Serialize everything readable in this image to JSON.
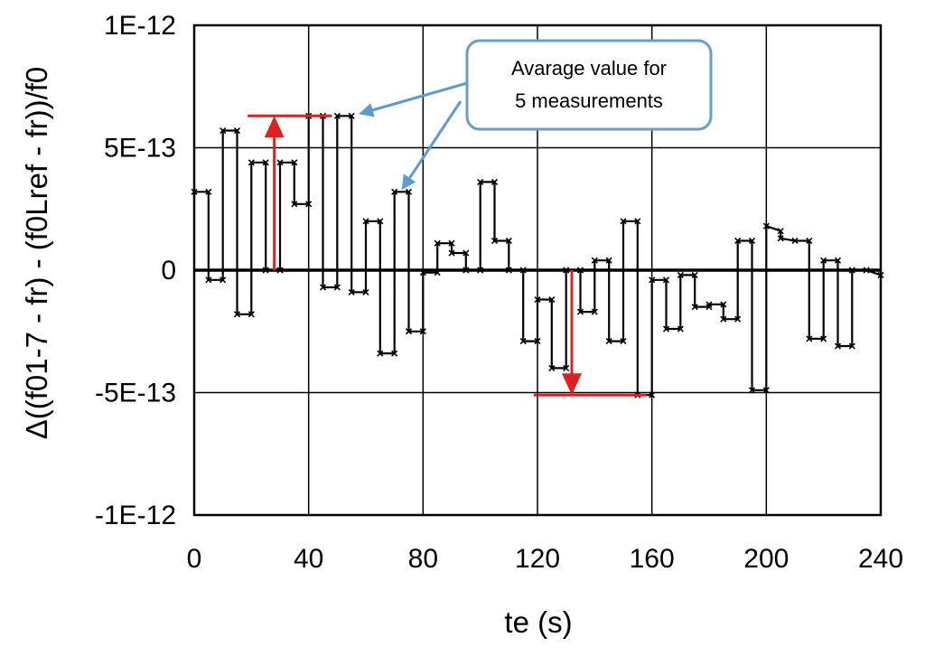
{
  "chart_data": {
    "type": "line",
    "title": "",
    "xlabel": "te (s)",
    "ylabel": "Δ((f01-7 - fr) - (f0Lref - fr))/f0",
    "xlim": [
      0,
      240
    ],
    "ylim": [
      -1e-12,
      1e-12
    ],
    "x_ticks": [
      0,
      40,
      80,
      120,
      160,
      200,
      240
    ],
    "x_tick_labels": [
      "0",
      "40",
      "80",
      "120",
      "160",
      "200",
      "240"
    ],
    "y_ticks": [
      1e-12,
      5e-13,
      0,
      -5e-13,
      -1e-12
    ],
    "y_tick_labels": [
      "1E-12",
      "5E-13",
      "0",
      "-5E-13",
      "-1E-12"
    ],
    "grid": true,
    "series": [
      {
        "name": "Avarage value for 5 measurements",
        "points": [
          [
            0,
            3.2e-13
          ],
          [
            5,
            3.2e-13
          ],
          [
            5,
            -4e-14
          ],
          [
            10,
            -4e-14
          ],
          [
            10,
            5.7e-13
          ],
          [
            15,
            5.7e-13
          ],
          [
            15,
            -1.8e-13
          ],
          [
            20,
            -1.8e-13
          ],
          [
            20,
            4.4e-13
          ],
          [
            25,
            4.4e-13
          ],
          [
            25,
            0
          ],
          [
            30,
            0
          ],
          [
            30,
            4.4e-13
          ],
          [
            35,
            4.4e-13
          ],
          [
            35,
            2.7e-13
          ],
          [
            40,
            2.7e-13
          ],
          [
            40,
            6.3e-13
          ],
          [
            45,
            6.3e-13
          ],
          [
            45,
            -7e-14
          ],
          [
            50,
            -7e-14
          ],
          [
            50,
            6.3e-13
          ],
          [
            55,
            6.3e-13
          ],
          [
            55,
            -9e-14
          ],
          [
            60,
            -9e-14
          ],
          [
            60,
            2e-13
          ],
          [
            65,
            2e-13
          ],
          [
            65,
            -3.4e-13
          ],
          [
            70,
            -3.4e-13
          ],
          [
            70,
            3.2e-13
          ],
          [
            75,
            3.2e-13
          ],
          [
            75,
            -2.5e-13
          ],
          [
            80,
            -2.5e-13
          ],
          [
            80,
            -1e-14
          ],
          [
            85,
            -1e-14
          ],
          [
            85,
            1.1e-13
          ],
          [
            90,
            1.1e-13
          ],
          [
            90,
            7e-14
          ],
          [
            95,
            7e-14
          ],
          [
            95,
            0
          ],
          [
            100,
            0
          ],
          [
            100,
            3.6e-13
          ],
          [
            105,
            3.6e-13
          ],
          [
            105,
            1.2e-13
          ],
          [
            110,
            1.2e-13
          ],
          [
            110,
            0
          ],
          [
            115,
            0
          ],
          [
            115,
            -2.9e-13
          ],
          [
            120,
            -2.9e-13
          ],
          [
            120,
            -1.2e-13
          ],
          [
            125,
            -1.2e-13
          ],
          [
            125,
            -4e-13
          ],
          [
            130,
            -4e-13
          ],
          [
            130,
            0
          ],
          [
            135,
            0
          ],
          [
            135,
            -1.7e-13
          ],
          [
            140,
            -1.7e-13
          ],
          [
            140,
            4e-14
          ],
          [
            145,
            4e-14
          ],
          [
            145,
            -2.9e-13
          ],
          [
            150,
            -2.9e-13
          ],
          [
            150,
            2e-13
          ],
          [
            155,
            2e-13
          ],
          [
            155,
            -5.1e-13
          ],
          [
            160,
            -5.1e-13
          ],
          [
            160,
            -4e-14
          ],
          [
            165,
            -4e-14
          ],
          [
            165,
            -2.4e-13
          ],
          [
            170,
            -2.4e-13
          ],
          [
            170,
            -2e-14
          ],
          [
            175,
            -2e-14
          ],
          [
            175,
            -1.5e-13
          ],
          [
            180,
            -1.5e-13
          ],
          [
            180,
            -1.4e-13
          ],
          [
            185,
            -1.4e-13
          ],
          [
            185,
            -2e-13
          ],
          [
            190,
            -2e-13
          ],
          [
            190,
            1.2e-13
          ],
          [
            195,
            1.2e-13
          ],
          [
            195,
            -4.9e-13
          ],
          [
            200,
            -4.9e-13
          ],
          [
            200,
            1.8e-13
          ],
          [
            205,
            1.6e-13
          ],
          [
            205,
            1.3e-13
          ],
          [
            210,
            1.2e-13
          ],
          [
            215,
            1.2e-13
          ],
          [
            215,
            -2.8e-13
          ],
          [
            220,
            -2.8e-13
          ],
          [
            220,
            4e-14
          ],
          [
            225,
            4e-14
          ],
          [
            225,
            -3.1e-13
          ],
          [
            230,
            -3.1e-13
          ],
          [
            230,
            0
          ],
          [
            235,
            0
          ],
          [
            240,
            -2e-14
          ]
        ],
        "color": "#000000"
      }
    ],
    "range_markers": [
      {
        "x_from": 25,
        "x_to": 45,
        "y": 6.3e-13,
        "arrow_x": 28,
        "arrow_from": 0,
        "arrow_to": 6.3e-13
      },
      {
        "x_from": 125,
        "x_to": 155,
        "y": -5.1e-13,
        "arrow_x": 132,
        "arrow_from": 0,
        "arrow_to": -5.1e-13
      }
    ],
    "annotation": {
      "text_lines": [
        "Avarage value for",
        "5 measurements"
      ],
      "targets": [
        [
          55,
          6.3e-13
        ],
        [
          70,
          3.2e-13
        ]
      ]
    }
  },
  "colors": {
    "line": "#000000",
    "marker_red": "#e02020",
    "callout_border": "#6a9ccc",
    "callout_arrow": "#5b9bd5",
    "grid": "#000000"
  }
}
